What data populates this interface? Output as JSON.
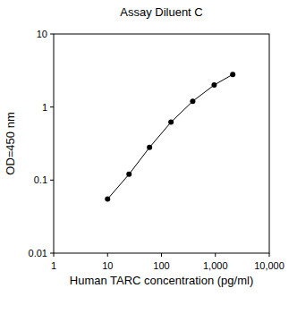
{
  "chart_data": {
    "type": "line",
    "title": "Assay Diluent C",
    "x_label": "Human TARC concentration (pg/ml)",
    "y_label": "OD=450 nm",
    "x": [
      10,
      25,
      60,
      150,
      380,
      950,
      2100
    ],
    "values": [
      0.055,
      0.12,
      0.28,
      0.62,
      1.2,
      2.0,
      2.8
    ],
    "color": "#000000",
    "marker": "circle",
    "line_style": "solid",
    "log": true,
    "grid": false,
    "xlim": [
      1,
      10000
    ],
    "ylim": [
      0.01,
      10
    ],
    "xticks": [
      1,
      10,
      100,
      {
        "value": 1000,
        "label": "1,000"
      },
      {
        "value": 10000,
        "label": "10,000"
      }
    ],
    "yticks": [
      0.01,
      0.1,
      1,
      10
    ]
  }
}
